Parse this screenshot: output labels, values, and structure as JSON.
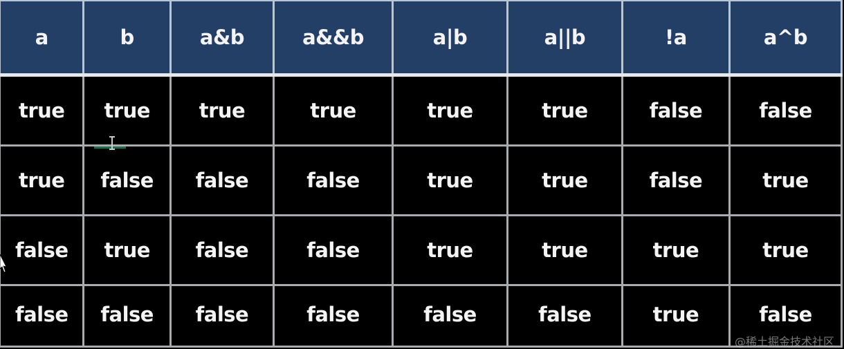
{
  "table": {
    "headers": [
      "a",
      "b",
      "a&b",
      "a&&b",
      "a|b",
      "a||b",
      "!a",
      "a^b"
    ],
    "rows": [
      [
        "true",
        "true",
        "true",
        "true",
        "true",
        "true",
        "false",
        "false"
      ],
      [
        "true",
        "false",
        "false",
        "false",
        "true",
        "true",
        "false",
        "true"
      ],
      [
        "false",
        "true",
        "false",
        "false",
        "true",
        "true",
        "true",
        "true"
      ],
      [
        "false",
        "false",
        "false",
        "false",
        "false",
        "false",
        "true",
        "false"
      ]
    ]
  },
  "colors": {
    "header_bg": "#243f66",
    "cell_bg": "#000000",
    "text": "#f4f4f4",
    "grid": "#a9acae"
  },
  "watermark": "@稀土掘金技术社区",
  "icons": {
    "text_cursor": "i-beam-cursor-icon",
    "pointer": "mouse-pointer-icon"
  }
}
